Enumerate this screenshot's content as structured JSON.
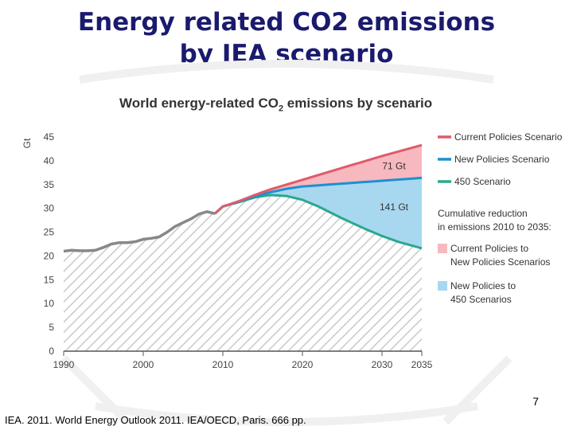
{
  "slide": {
    "title_line1": "Energy related CO2 emissions",
    "title_line2": "by IEA scenario",
    "page_number": "7",
    "citation": "IEA. 2011. World Energy Outlook 2011. IEA/OECD, Paris. 666 pp."
  },
  "chart_data": {
    "type": "line",
    "title_main": "World energy-related CO",
    "title_sub": "2",
    "title_end": " emissions by scenario",
    "ylabel": "Gt",
    "ylim": [
      0,
      45
    ],
    "xlim": [
      1990,
      2035
    ],
    "xticks": [
      1990,
      2000,
      2010,
      2020,
      2030,
      2035
    ],
    "yticks": [
      0,
      5,
      10,
      15,
      20,
      25,
      30,
      35,
      40,
      45
    ],
    "grid": false,
    "legend_position": "right",
    "historical": {
      "color": "#888888",
      "x": [
        1990,
        1991,
        1992,
        1993,
        1994,
        1995,
        1996,
        1997,
        1998,
        1999,
        2000,
        2001,
        2002,
        2003,
        2004,
        2005,
        2006,
        2007,
        2008,
        2009
      ],
      "y": [
        21.0,
        21.2,
        21.1,
        21.1,
        21.2,
        21.8,
        22.5,
        22.8,
        22.8,
        23.0,
        23.5,
        23.7,
        24.0,
        25.0,
        26.2,
        27.0,
        27.8,
        28.8,
        29.3,
        28.9
      ]
    },
    "series": [
      {
        "name": "Current Policies Scenario",
        "color": "#e05a6a",
        "x": [
          2009,
          2010,
          2012,
          2014,
          2016,
          2018,
          2020,
          2025,
          2030,
          2035
        ],
        "y": [
          28.9,
          30.4,
          31.5,
          32.8,
          34.0,
          35.0,
          36.0,
          38.5,
          41.0,
          43.3
        ]
      },
      {
        "name": "New Policies Scenario",
        "color": "#1e90d0",
        "x": [
          2009,
          2010,
          2012,
          2014,
          2016,
          2018,
          2020,
          2025,
          2030,
          2035
        ],
        "y": [
          28.9,
          30.4,
          31.4,
          32.5,
          33.4,
          34.1,
          34.6,
          35.2,
          35.8,
          36.4
        ]
      },
      {
        "name": "450 Scenario",
        "color": "#2ba88e",
        "x": [
          2009,
          2010,
          2012,
          2014,
          2016,
          2018,
          2020,
          2022,
          2025,
          2028,
          2030,
          2032,
          2035
        ],
        "y": [
          28.9,
          30.4,
          31.3,
          32.3,
          32.8,
          32.6,
          31.8,
          30.4,
          27.9,
          25.6,
          24.2,
          23.0,
          21.6
        ]
      }
    ],
    "areas": [
      {
        "name": "Current Policies to New Policies Scenarios",
        "color": "#f7b8bf",
        "label": "71 Gt"
      },
      {
        "name": "New Policies to 450 Scenarios",
        "color": "#a8d8f0",
        "label": "141 Gt"
      }
    ],
    "legend_heading": [
      "Cumulative reduction",
      "in emissions 2010 to 2035:"
    ],
    "legend_area_labels": [
      [
        "Current Policies to",
        "New Policies Scenarios"
      ],
      [
        "New Policies to",
        "450 Scenarios"
      ]
    ]
  }
}
